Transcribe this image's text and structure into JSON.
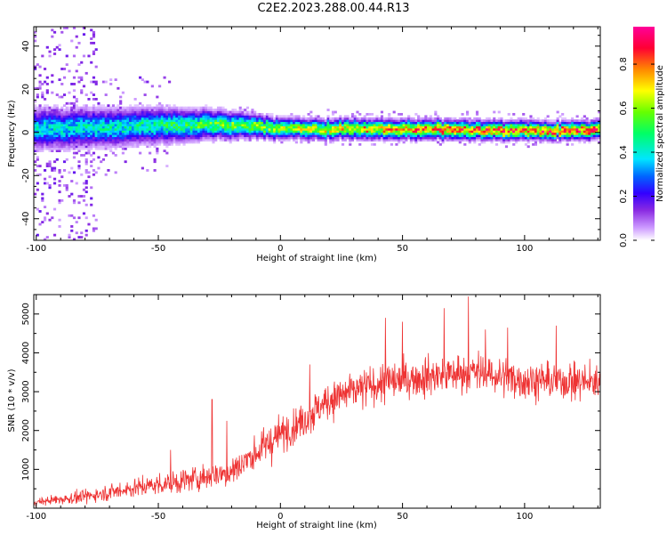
{
  "title": "C2E2.2023.288.00.44.R13",
  "chart_data": [
    {
      "type": "heatmap",
      "xlabel": "Height of straight line (km)",
      "ylabel": "Frequency (Hz)",
      "xlim": [
        -101,
        131
      ],
      "ylim": [
        -50,
        49
      ],
      "xticks": [
        -100,
        -50,
        0,
        50,
        100
      ],
      "yticks": [
        40,
        20,
        0,
        -20,
        -40
      ],
      "colorbar": {
        "label": "Normalized spectral amplitude",
        "range": [
          0,
          0.97
        ],
        "ticks": [
          0.0,
          0.2,
          0.4,
          0.6,
          0.8
        ],
        "colormap": [
          "#ffffff",
          "#cc99ff",
          "#8a2be2",
          "#3300ff",
          "#0066ff",
          "#00e5ff",
          "#00ff66",
          "#66ff00",
          "#ffff00",
          "#ff8800",
          "#ff0033",
          "#ff0099"
        ]
      },
      "ridge": {
        "center_hz": [
          {
            "x": -100,
            "y": 1.5
          },
          {
            "x": -50,
            "y": 3
          },
          {
            "x": -25,
            "y": 4
          },
          {
            "x": 0,
            "y": 2
          },
          {
            "x": 50,
            "y": 1.5
          },
          {
            "x": 100,
            "y": 1
          },
          {
            "x": 131,
            "y": 1
          }
        ],
        "halfwidth_hz": [
          {
            "x": -100,
            "y": 7
          },
          {
            "x": -50,
            "y": 6
          },
          {
            "x": -20,
            "y": 4.5
          },
          {
            "x": 0,
            "y": 3.5
          },
          {
            "x": 131,
            "y": 3
          }
        ],
        "peak_amplitude": [
          {
            "x": -100,
            "y": 0.38
          },
          {
            "x": -60,
            "y": 0.42
          },
          {
            "x": -20,
            "y": 0.55
          },
          {
            "x": 20,
            "y": 0.65
          },
          {
            "x": 60,
            "y": 0.78
          },
          {
            "x": 131,
            "y": 0.82
          }
        ]
      }
    },
    {
      "type": "line",
      "xlabel": "Height of straight line (km)",
      "ylabel": "SNR (10 * v/v)",
      "xlim": [
        -101,
        131
      ],
      "ylim": [
        0,
        5500
      ],
      "xticks": [
        -100,
        -50,
        0,
        50,
        100
      ],
      "yticks": [
        1000,
        2000,
        3000,
        4000,
        5000
      ],
      "color": "#ee3333",
      "trend": [
        {
          "x": -101,
          "y": 150
        },
        {
          "x": -80,
          "y": 300
        },
        {
          "x": -60,
          "y": 520
        },
        {
          "x": -40,
          "y": 700
        },
        {
          "x": -20,
          "y": 950
        },
        {
          "x": 0,
          "y": 1900
        },
        {
          "x": 10,
          "y": 2300
        },
        {
          "x": 20,
          "y": 2800
        },
        {
          "x": 40,
          "y": 3200
        },
        {
          "x": 60,
          "y": 3400
        },
        {
          "x": 80,
          "y": 3500
        },
        {
          "x": 100,
          "y": 3300
        },
        {
          "x": 131,
          "y": 3250
        }
      ],
      "noise_amplitude": [
        {
          "x": -101,
          "y": 120
        },
        {
          "x": -50,
          "y": 350
        },
        {
          "x": 0,
          "y": 600
        },
        {
          "x": 40,
          "y": 650
        },
        {
          "x": 131,
          "y": 600
        }
      ],
      "peaks": [
        {
          "x": -45,
          "y": 1500
        },
        {
          "x": -28,
          "y": 2800
        },
        {
          "x": -22,
          "y": 2250
        },
        {
          "x": 12,
          "y": 3700
        },
        {
          "x": 43,
          "y": 4900
        },
        {
          "x": 50,
          "y": 4800
        },
        {
          "x": 67,
          "y": 5150
        },
        {
          "x": 77,
          "y": 5450
        },
        {
          "x": 84,
          "y": 4600
        },
        {
          "x": 93,
          "y": 4650
        },
        {
          "x": 113,
          "y": 4700
        }
      ]
    }
  ]
}
